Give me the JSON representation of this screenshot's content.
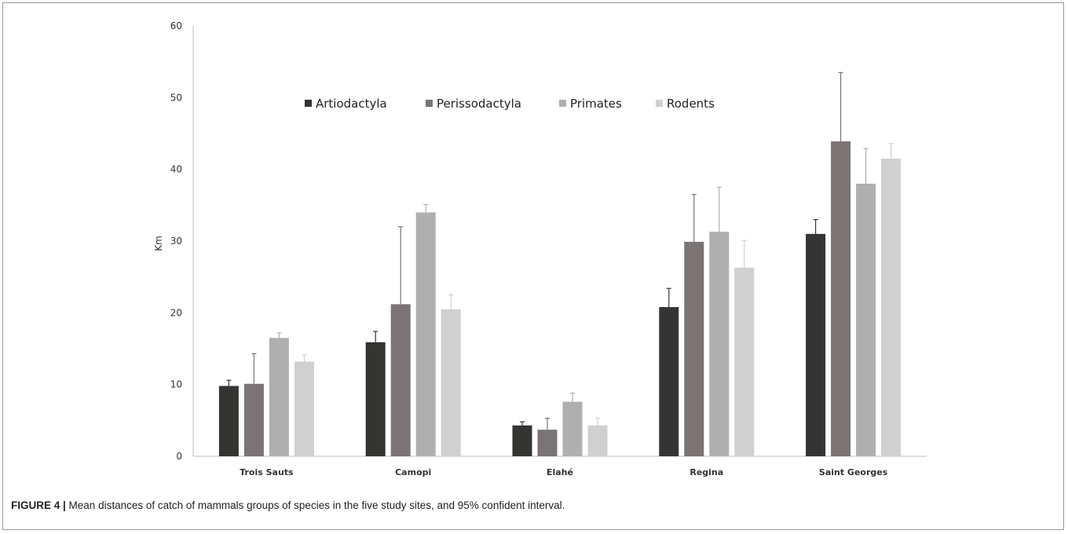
{
  "caption": {
    "label": "FIGURE 4 |",
    "text": " Mean distances of catch of mammals groups of species in the five study sites, and 95% confident interval."
  },
  "chart_data": {
    "type": "bar",
    "title": "",
    "xlabel": "",
    "ylabel": "Km",
    "ylim": [
      0,
      60
    ],
    "yticks": [
      0,
      10,
      20,
      30,
      40,
      50,
      60
    ],
    "grid": false,
    "legend_position": "top-center",
    "categories": [
      "Trois Sauts",
      "Camopi",
      "Elahé",
      "Regina",
      "Saint Georges"
    ],
    "series": [
      {
        "name": "Artiodactyla",
        "color": "#343432",
        "values": [
          9.8,
          15.9,
          4.3,
          20.8,
          31.0
        ],
        "ci_upper": [
          10.6,
          17.4,
          4.8,
          23.4,
          33.0
        ]
      },
      {
        "name": "Perissodactyla",
        "color": "#7a7474",
        "values": [
          10.1,
          21.2,
          3.7,
          29.9,
          43.9
        ],
        "ci_upper": [
          14.3,
          32.0,
          5.3,
          36.5,
          53.5
        ]
      },
      {
        "name": "Primates",
        "color": "#afafaf",
        "values": [
          16.5,
          34.0,
          7.6,
          31.3,
          38.0
        ],
        "ci_upper": [
          17.2,
          35.1,
          8.8,
          37.5,
          42.9
        ]
      },
      {
        "name": "Rodents",
        "color": "#d0d0d0",
        "values": [
          13.2,
          20.5,
          4.3,
          26.3,
          41.5
        ],
        "ci_upper": [
          14.1,
          22.5,
          5.3,
          30.1,
          43.6
        ]
      }
    ]
  }
}
